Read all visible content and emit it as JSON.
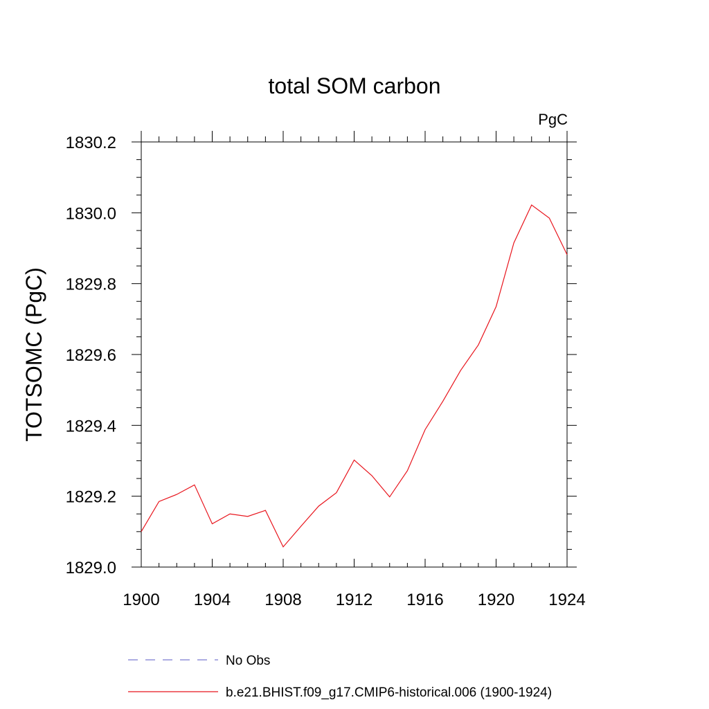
{
  "chart_data": {
    "type": "line",
    "title": "total SOM carbon",
    "units_label": "PgC",
    "ylabel": "TOTSOMC  (PgC)",
    "xlabel": "",
    "xlim": [
      1900,
      1924
    ],
    "ylim": [
      1829.0,
      1830.2
    ],
    "x_ticks": [
      "1900",
      "1904",
      "1908",
      "1912",
      "1916",
      "1920",
      "1924"
    ],
    "y_ticks": [
      "1829.0",
      "1829.2",
      "1829.4",
      "1829.6",
      "1829.8",
      "1830.0",
      "1830.2"
    ],
    "grid": false,
    "legend_position": "bottom",
    "series": [
      {
        "name": "No Obs",
        "color": "#7b7bd0",
        "dash": "dashed",
        "x": [],
        "values": []
      },
      {
        "name": "b.e21.BHIST.f09_g17.CMIP6-historical.006 (1900-1924)",
        "color": "#e8141c",
        "dash": "solid",
        "x": [
          1900,
          1901,
          1902,
          1903,
          1904,
          1905,
          1906,
          1907,
          1908,
          1909,
          1910,
          1911,
          1912,
          1913,
          1914,
          1915,
          1916,
          1917,
          1918,
          1919,
          1920,
          1921,
          1922,
          1923,
          1924
        ],
        "values": [
          1829.1,
          1829.185,
          1829.205,
          1829.232,
          1829.122,
          1829.15,
          1829.143,
          1829.16,
          1829.057,
          1829.115,
          1829.172,
          1829.21,
          1829.302,
          1829.258,
          1829.198,
          1829.272,
          1829.388,
          1829.468,
          1829.555,
          1829.627,
          1829.735,
          1829.915,
          1830.022,
          1829.985,
          1829.882
        ]
      }
    ]
  }
}
